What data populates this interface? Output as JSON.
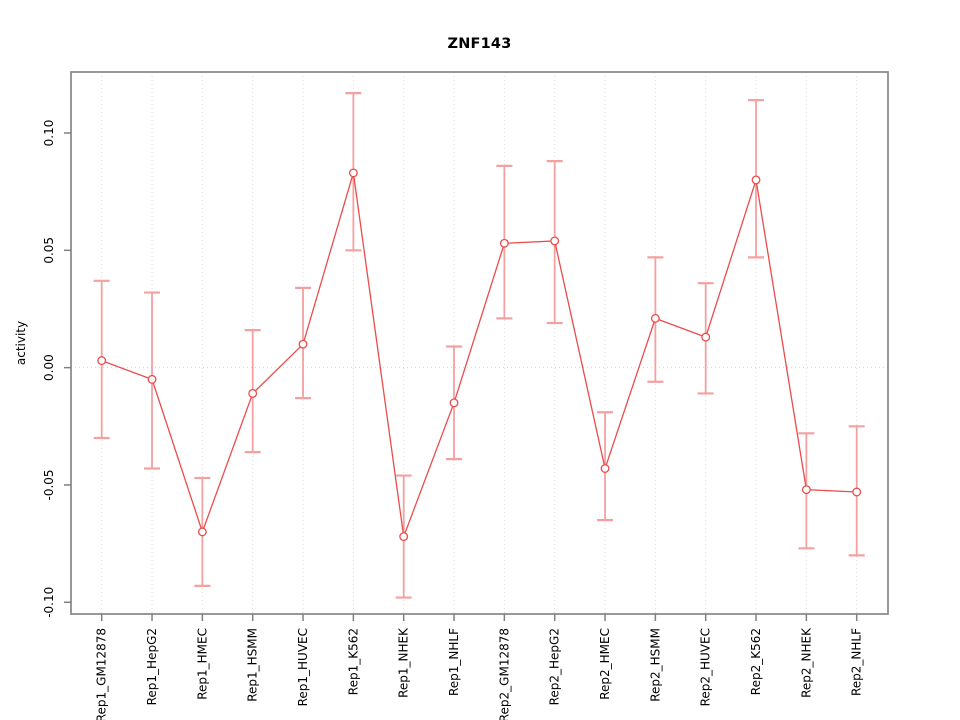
{
  "window": {
    "background": "#FFFFFF"
  },
  "chart_data": {
    "type": "line",
    "title": "ZNF143",
    "xlabel": "",
    "ylabel": "activity",
    "categories": [
      "Rep1_GM12878",
      "Rep1_HepG2",
      "Rep1_HMEC",
      "Rep1_HSMM",
      "Rep1_HUVEC",
      "Rep1_K562",
      "Rep1_NHEK",
      "Rep1_NHLF",
      "Rep2_GM12878",
      "Rep2_HepG2",
      "Rep2_HMEC",
      "Rep2_HSMM",
      "Rep2_HUVEC",
      "Rep2_K562",
      "Rep2_NHEK",
      "Rep2_NHLF"
    ],
    "series": [
      {
        "name": "ZNF143 activity",
        "values": [
          0.003,
          -0.005,
          -0.07,
          -0.011,
          0.01,
          0.083,
          -0.072,
          -0.015,
          0.053,
          0.054,
          -0.043,
          0.021,
          0.013,
          0.08,
          -0.052,
          -0.053
        ],
        "ci_high": [
          0.037,
          0.032,
          -0.047,
          0.016,
          0.034,
          0.117,
          -0.046,
          0.009,
          0.086,
          0.088,
          -0.019,
          0.047,
          0.036,
          0.114,
          -0.028,
          -0.025
        ],
        "ci_low": [
          -0.03,
          -0.043,
          -0.093,
          -0.036,
          -0.013,
          0.05,
          -0.098,
          -0.039,
          0.021,
          0.019,
          -0.065,
          -0.006,
          -0.011,
          0.047,
          -0.077,
          -0.08
        ]
      }
    ],
    "yticks": [
      -0.1,
      -0.05,
      0.0,
      0.05,
      0.1
    ],
    "ytick_labels": [
      "-0.10",
      "-0.05",
      "0.00",
      "0.05",
      "0.10"
    ],
    "ylim": [
      -0.105,
      0.126
    ],
    "grid": {
      "vertical_dotted_per_category": true,
      "horizontal_dotted_zero_line": true
    },
    "legend": "none",
    "point_style": "open-circle-with-error-bars",
    "colors": {
      "line": "#E94C4B",
      "point_stroke": "#E94C4B",
      "point_fill": "#FFFFFF",
      "error_bar": "#F5A0A0",
      "box": "#8C8C8C",
      "tick": "#808080",
      "grid": "#DBDBDB",
      "zero_line": "#D0D0D0",
      "text": "#000000",
      "background": "#FFFFFF"
    }
  }
}
